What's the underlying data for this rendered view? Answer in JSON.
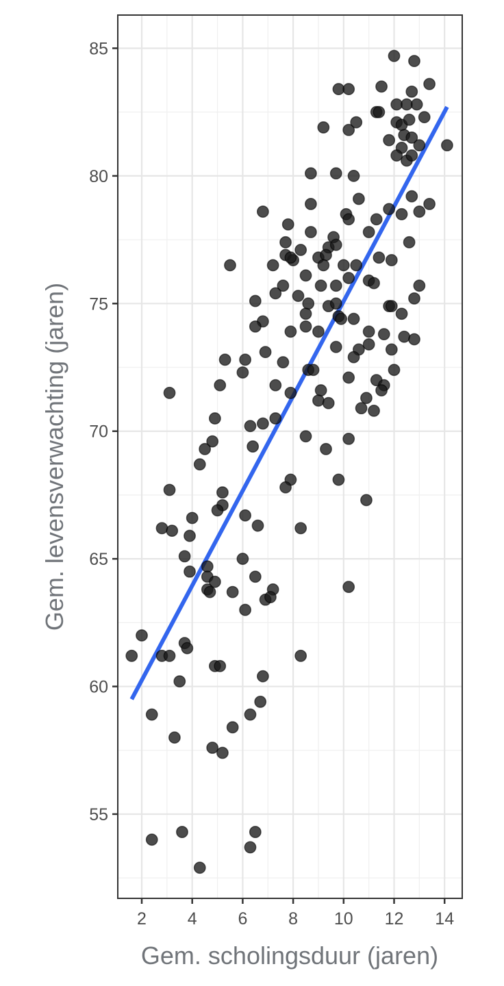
{
  "chart_data": {
    "type": "scatter",
    "title": "",
    "xlabel": "Gem. scholingsduur (jaren)",
    "ylabel": "Gem. levensverwachting (jaren)",
    "xlim": [
      1.05,
      14.7
    ],
    "ylim": [
      51.7,
      86.3
    ],
    "x_ticks": [
      2,
      4,
      6,
      8,
      10,
      12,
      14
    ],
    "y_ticks": [
      55,
      60,
      65,
      70,
      75,
      80,
      85
    ],
    "grid": true,
    "point_color": "#000000",
    "trend_line": {
      "color": "#3366ee",
      "method": "lm",
      "x": [
        1.6,
        14.1
      ],
      "y": [
        59.5,
        82.7
      ]
    },
    "points": [
      [
        12.0,
        84.7
      ],
      [
        12.8,
        84.5
      ],
      [
        9.8,
        83.4
      ],
      [
        10.2,
        83.4
      ],
      [
        11.5,
        83.5
      ],
      [
        12.7,
        83.3
      ],
      [
        13.4,
        83.6
      ],
      [
        11.3,
        82.5
      ],
      [
        11.4,
        82.5
      ],
      [
        12.1,
        82.8
      ],
      [
        12.5,
        82.8
      ],
      [
        12.9,
        82.8
      ],
      [
        9.2,
        81.9
      ],
      [
        10.2,
        81.8
      ],
      [
        10.5,
        82.1
      ],
      [
        12.1,
        82.1
      ],
      [
        12.3,
        82.0
      ],
      [
        12.6,
        82.2
      ],
      [
        12.4,
        81.6
      ],
      [
        12.7,
        81.5
      ],
      [
        11.8,
        81.4
      ],
      [
        13.2,
        82.3
      ],
      [
        12.3,
        81.1
      ],
      [
        13.0,
        81.2
      ],
      [
        14.1,
        81.2
      ],
      [
        12.1,
        80.8
      ],
      [
        12.5,
        80.6
      ],
      [
        12.7,
        80.8
      ],
      [
        8.7,
        80.1
      ],
      [
        9.7,
        80.1
      ],
      [
        10.4,
        80.0
      ],
      [
        12.7,
        79.2
      ],
      [
        13.4,
        78.9
      ],
      [
        10.6,
        79.1
      ],
      [
        8.7,
        78.9
      ],
      [
        6.8,
        78.6
      ],
      [
        10.1,
        78.5
      ],
      [
        10.2,
        78.3
      ],
      [
        11.8,
        78.7
      ],
      [
        12.3,
        78.5
      ],
      [
        13.0,
        78.6
      ],
      [
        7.8,
        78.1
      ],
      [
        8.7,
        77.8
      ],
      [
        9.6,
        77.6
      ],
      [
        11.0,
        77.8
      ],
      [
        11.3,
        78.3
      ],
      [
        7.7,
        77.4
      ],
      [
        9.4,
        77.2
      ],
      [
        8.3,
        77.1
      ],
      [
        9.7,
        77.3
      ],
      [
        12.6,
        77.4
      ],
      [
        7.7,
        76.9
      ],
      [
        8.0,
        76.7
      ],
      [
        7.9,
        76.8
      ],
      [
        9.0,
        76.8
      ],
      [
        9.3,
        76.9
      ],
      [
        11.4,
        76.8
      ],
      [
        11.9,
        76.7
      ],
      [
        5.5,
        76.5
      ],
      [
        7.2,
        76.5
      ],
      [
        9.2,
        76.5
      ],
      [
        10.0,
        76.5
      ],
      [
        10.5,
        76.5
      ],
      [
        8.5,
        76.1
      ],
      [
        10.2,
        76.0
      ],
      [
        11.0,
        75.9
      ],
      [
        11.2,
        75.8
      ],
      [
        7.6,
        75.7
      ],
      [
        9.1,
        75.7
      ],
      [
        9.7,
        75.7
      ],
      [
        13.0,
        75.7
      ],
      [
        7.3,
        75.4
      ],
      [
        8.2,
        75.3
      ],
      [
        12.8,
        75.2
      ],
      [
        6.5,
        75.1
      ],
      [
        8.6,
        75.0
      ],
      [
        9.4,
        74.9
      ],
      [
        9.7,
        75.0
      ],
      [
        11.8,
        74.9
      ],
      [
        11.9,
        74.9
      ],
      [
        8.5,
        74.6
      ],
      [
        12.3,
        74.6
      ],
      [
        9.8,
        74.5
      ],
      [
        9.9,
        74.4
      ],
      [
        10.4,
        74.4
      ],
      [
        6.8,
        74.3
      ],
      [
        6.5,
        74.1
      ],
      [
        8.5,
        74.1
      ],
      [
        7.9,
        73.9
      ],
      [
        9.0,
        73.9
      ],
      [
        11.0,
        73.9
      ],
      [
        12.4,
        73.7
      ],
      [
        12.8,
        73.6
      ],
      [
        11.6,
        73.8
      ],
      [
        9.7,
        73.3
      ],
      [
        10.6,
        73.2
      ],
      [
        11.0,
        73.4
      ],
      [
        11.9,
        73.2
      ],
      [
        6.9,
        73.1
      ],
      [
        10.4,
        72.9
      ],
      [
        5.3,
        72.8
      ],
      [
        6.1,
        72.8
      ],
      [
        7.6,
        72.7
      ],
      [
        8.6,
        72.4
      ],
      [
        8.8,
        72.4
      ],
      [
        6.0,
        72.3
      ],
      [
        12.0,
        72.4
      ],
      [
        10.2,
        72.1
      ],
      [
        11.3,
        72.0
      ],
      [
        11.6,
        71.8
      ],
      [
        5.1,
        71.8
      ],
      [
        7.3,
        71.8
      ],
      [
        11.5,
        71.6
      ],
      [
        7.9,
        71.5
      ],
      [
        9.1,
        71.6
      ],
      [
        3.1,
        71.5
      ],
      [
        10.9,
        71.3
      ],
      [
        9.0,
        71.2
      ],
      [
        9.4,
        71.1
      ],
      [
        10.7,
        70.9
      ],
      [
        11.2,
        70.8
      ],
      [
        4.9,
        70.5
      ],
      [
        7.3,
        70.5
      ],
      [
        6.3,
        70.2
      ],
      [
        6.8,
        70.3
      ],
      [
        8.5,
        69.8
      ],
      [
        4.8,
        69.6
      ],
      [
        10.2,
        69.7
      ],
      [
        4.5,
        69.3
      ],
      [
        6.4,
        69.4
      ],
      [
        9.3,
        69.3
      ],
      [
        4.3,
        68.7
      ],
      [
        7.9,
        68.1
      ],
      [
        9.8,
        68.1
      ],
      [
        7.7,
        67.8
      ],
      [
        3.1,
        67.7
      ],
      [
        5.2,
        67.6
      ],
      [
        10.9,
        67.3
      ],
      [
        5.2,
        67.1
      ],
      [
        5.0,
        66.9
      ],
      [
        6.1,
        66.7
      ],
      [
        2.8,
        66.2
      ],
      [
        3.2,
        66.1
      ],
      [
        4.0,
        66.6
      ],
      [
        6.6,
        66.3
      ],
      [
        8.3,
        66.2
      ],
      [
        3.9,
        65.9
      ],
      [
        3.7,
        65.1
      ],
      [
        6.0,
        65.0
      ],
      [
        4.6,
        64.7
      ],
      [
        3.9,
        64.5
      ],
      [
        4.6,
        64.3
      ],
      [
        4.9,
        64.1
      ],
      [
        6.5,
        64.3
      ],
      [
        10.2,
        63.9
      ],
      [
        4.6,
        63.8
      ],
      [
        4.7,
        63.7
      ],
      [
        5.6,
        63.7
      ],
      [
        7.2,
        63.8
      ],
      [
        6.9,
        63.4
      ],
      [
        7.1,
        63.5
      ],
      [
        6.1,
        63.0
      ],
      [
        2.0,
        62.0
      ],
      [
        3.7,
        61.7
      ],
      [
        3.8,
        61.5
      ],
      [
        1.6,
        61.2
      ],
      [
        2.8,
        61.2
      ],
      [
        3.1,
        61.2
      ],
      [
        8.3,
        61.2
      ],
      [
        4.9,
        60.8
      ],
      [
        5.1,
        60.8
      ],
      [
        6.8,
        60.4
      ],
      [
        3.5,
        60.2
      ],
      [
        6.7,
        59.4
      ],
      [
        2.4,
        58.9
      ],
      [
        6.3,
        58.9
      ],
      [
        5.6,
        58.4
      ],
      [
        3.3,
        58.0
      ],
      [
        4.8,
        57.6
      ],
      [
        5.2,
        57.4
      ],
      [
        3.6,
        54.3
      ],
      [
        6.5,
        54.3
      ],
      [
        2.4,
        54.0
      ],
      [
        6.3,
        53.7
      ],
      [
        4.3,
        52.9
      ]
    ]
  }
}
